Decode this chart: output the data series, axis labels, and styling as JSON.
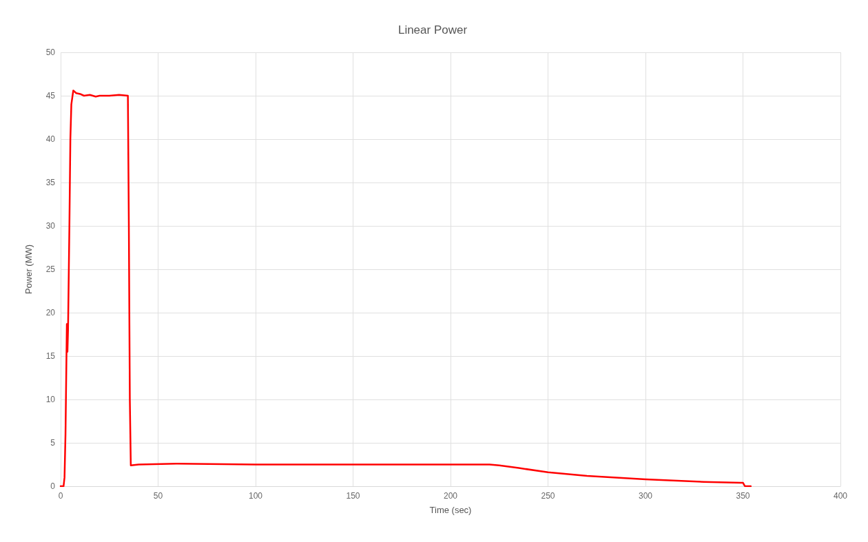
{
  "chart_data": {
    "type": "line",
    "title": "Linear Power",
    "xlabel": "Time (sec)",
    "ylabel": "Power (MW)",
    "x": [
      0,
      1.5,
      2,
      2.5,
      3,
      3.2,
      3.5,
      3.8,
      4.5,
      5,
      5.5,
      6.5,
      8,
      10,
      12,
      15,
      18,
      20,
      25,
      30,
      34.5,
      35,
      35.5,
      36,
      40,
      60,
      100,
      150,
      200,
      220,
      225,
      235,
      250,
      270,
      300,
      330,
      349,
      350,
      351,
      354
    ],
    "series": [
      {
        "color": "#ff0000",
        "values": [
          0,
          0,
          1,
          6,
          15,
          18.7,
          15.5,
          18,
          30,
          40,
          44,
          45.6,
          45.3,
          45.2,
          45,
          45.1,
          44.9,
          45,
          45,
          45.1,
          45,
          30,
          10,
          2.4,
          2.5,
          2.6,
          2.5,
          2.5,
          2.5,
          2.5,
          2.4,
          2.1,
          1.6,
          1.2,
          0.8,
          0.5,
          0.4,
          0.4,
          0,
          0
        ]
      }
    ],
    "xlim": [
      0,
      400
    ],
    "xticks": [
      0,
      50,
      100,
      150,
      200,
      250,
      300,
      350,
      400
    ],
    "ylim": [
      0,
      50
    ],
    "yticks": [
      0,
      5,
      10,
      15,
      20,
      25,
      30,
      35,
      40,
      45,
      50
    ],
    "grid": true,
    "marker": "none",
    "line_style": "solid"
  }
}
